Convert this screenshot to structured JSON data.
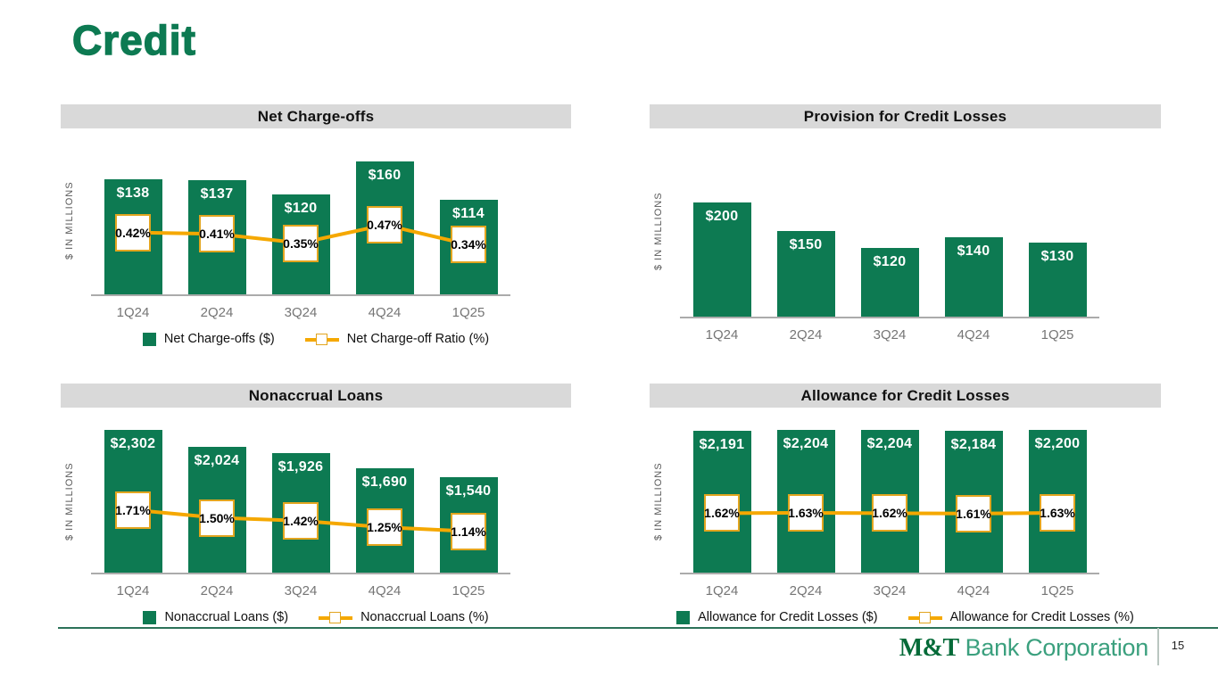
{
  "title": "Credit",
  "colors": {
    "brand_green": "#0d7a52",
    "gold_line": "#f5a800",
    "title_band_gray": "#d9d9d9"
  },
  "footer": {
    "logo_bold": "M&T",
    "logo_rest": "Bank Corporation",
    "page_number": "15"
  },
  "chart_data": [
    {
      "type": "bar",
      "title": "Net Charge-offs",
      "ylabel": "$ IN MILLIONS",
      "xlabel": "",
      "categories": [
        "1Q24",
        "2Q24",
        "3Q24",
        "4Q24",
        "1Q25"
      ],
      "series": [
        {
          "name": "Net Charge-offs ($)",
          "kind": "bar",
          "values": [
            138,
            137,
            120,
            160,
            114
          ],
          "labels": [
            "$138",
            "$137",
            "$120",
            "$160",
            "$114"
          ]
        },
        {
          "name": "Net Charge-off Ratio (%)",
          "kind": "line",
          "values": [
            0.42,
            0.41,
            0.35,
            0.47,
            0.34
          ],
          "labels": [
            "0.42%",
            "0.41%",
            "0.35%",
            "0.47%",
            "0.34%"
          ]
        }
      ],
      "ylim": [
        0,
        182
      ],
      "ratio_ylim": [
        0,
        1.0
      ],
      "grid": false,
      "show_legend": true,
      "legend_position": "bottom"
    },
    {
      "type": "bar",
      "title": "Provision for Credit Losses",
      "ylabel": "$ IN MILLIONS",
      "xlabel": "",
      "categories": [
        "1Q24",
        "2Q24",
        "3Q24",
        "4Q24",
        "1Q25"
      ],
      "series": [
        {
          "name": "Provision for Credit Losses ($)",
          "kind": "bar",
          "values": [
            200,
            150,
            120,
            140,
            130
          ],
          "labels": [
            "$200",
            "$150",
            "$120",
            "$140",
            "$130"
          ]
        }
      ],
      "ylim": [
        0,
        305
      ],
      "grid": false,
      "show_legend": false
    },
    {
      "type": "bar",
      "title": "Nonaccrual Loans",
      "ylabel": "$ IN MILLIONS",
      "xlabel": "",
      "categories": [
        "1Q24",
        "2Q24",
        "3Q24",
        "4Q24",
        "1Q25"
      ],
      "series": [
        {
          "name": "Nonaccrual Loans ($)",
          "kind": "bar",
          "values": [
            2302,
            2024,
            1926,
            1690,
            1540
          ],
          "labels": [
            "$2,302",
            "$2,024",
            "$1,926",
            "$1,690",
            "$1,540"
          ]
        },
        {
          "name": "Nonaccrual Loans (%)",
          "kind": "line",
          "values": [
            1.71,
            1.5,
            1.42,
            1.25,
            1.14
          ],
          "labels": [
            "1.71%",
            "1.50%",
            "1.42%",
            "1.25%",
            "1.14%"
          ]
        }
      ],
      "ylim": [
        0,
        2345
      ],
      "ratio_ylim": [
        0,
        3.85
      ],
      "grid": false,
      "show_legend": true,
      "legend_position": "bottom"
    },
    {
      "type": "bar",
      "title": "Allowance for Credit Losses",
      "ylabel": "$ IN MILLIONS",
      "xlabel": "",
      "categories": [
        "1Q24",
        "2Q24",
        "3Q24",
        "4Q24",
        "1Q25"
      ],
      "series": [
        {
          "name": "Allowance for Credit Losses ($)",
          "kind": "bar",
          "values": [
            2191,
            2204,
            2204,
            2184,
            2200
          ],
          "labels": [
            "$2,191",
            "$2,204",
            "$2,204",
            "$2,184",
            "$2,200"
          ]
        },
        {
          "name": "Allowance for Credit Losses (%)",
          "kind": "line",
          "values": [
            1.62,
            1.63,
            1.62,
            1.61,
            1.63
          ],
          "labels": [
            "1.62%",
            "1.63%",
            "1.62%",
            "1.61%",
            "1.63%"
          ]
        }
      ],
      "ylim": [
        0,
        2245
      ],
      "ratio_ylim": [
        0,
        3.85
      ],
      "grid": false,
      "show_legend": true,
      "legend_position": "bottom"
    }
  ]
}
